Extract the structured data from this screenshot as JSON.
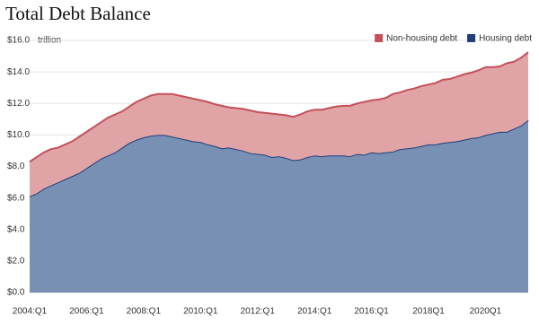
{
  "chart_data": {
    "type": "stacked_area",
    "title": "Total Debt Balance",
    "y_unit_label": "trillion",
    "categories": [
      "2004:Q1",
      null,
      null,
      null,
      null,
      null,
      null,
      null,
      "2006:Q1",
      null,
      null,
      null,
      null,
      null,
      null,
      null,
      "2008:Q1",
      null,
      null,
      null,
      null,
      null,
      null,
      null,
      "2010:Q1",
      null,
      null,
      null,
      null,
      null,
      null,
      null,
      "2012:Q1",
      null,
      null,
      null,
      null,
      null,
      null,
      null,
      "2014:Q1",
      null,
      null,
      null,
      null,
      null,
      null,
      null,
      "2016:Q1",
      null,
      null,
      null,
      null,
      null,
      null,
      null,
      "2018Q1",
      null,
      null,
      null,
      null,
      null,
      null,
      null,
      "2020Q1",
      null,
      null,
      null,
      null,
      null,
      null
    ],
    "series": [
      {
        "name": "Housing debt",
        "color": "#1f3f7a",
        "fill": "#7890b4",
        "values": [
          6.1,
          6.3,
          6.6,
          6.8,
          7.0,
          7.2,
          7.4,
          7.6,
          7.9,
          8.2,
          8.5,
          8.7,
          8.9,
          9.2,
          9.5,
          9.7,
          9.85,
          9.95,
          10.0,
          10.0,
          9.9,
          9.8,
          9.7,
          9.6,
          9.55,
          9.4,
          9.3,
          9.15,
          9.2,
          9.1,
          9.0,
          8.85,
          8.8,
          8.75,
          8.6,
          8.65,
          8.55,
          8.4,
          8.45,
          8.6,
          8.7,
          8.65,
          8.7,
          8.7,
          8.7,
          8.65,
          8.8,
          8.75,
          8.9,
          8.85,
          8.9,
          8.95,
          9.1,
          9.15,
          9.2,
          9.3,
          9.4,
          9.4,
          9.5,
          9.55,
          9.6,
          9.7,
          9.8,
          9.85,
          10.0,
          10.1,
          10.2,
          10.2,
          10.4,
          10.6,
          10.95
        ]
      },
      {
        "name": "Non-housing debt",
        "color": "#c4505a",
        "fill": "#e0a3a6",
        "values": [
          2.2,
          2.3,
          2.3,
          2.3,
          2.2,
          2.2,
          2.2,
          2.3,
          2.3,
          2.3,
          2.3,
          2.4,
          2.4,
          2.3,
          2.3,
          2.4,
          2.45,
          2.55,
          2.6,
          2.6,
          2.7,
          2.7,
          2.7,
          2.7,
          2.65,
          2.7,
          2.65,
          2.7,
          2.55,
          2.6,
          2.65,
          2.7,
          2.65,
          2.65,
          2.75,
          2.65,
          2.7,
          2.75,
          2.85,
          2.9,
          2.9,
          2.95,
          3.0,
          3.1,
          3.15,
          3.2,
          3.2,
          3.35,
          3.3,
          3.4,
          3.45,
          3.65,
          3.6,
          3.7,
          3.75,
          3.8,
          3.8,
          3.9,
          4.0,
          4.0,
          4.1,
          4.15,
          4.15,
          4.25,
          4.3,
          4.2,
          4.15,
          4.35,
          4.25,
          4.3,
          4.3
        ]
      }
    ],
    "ylim": [
      0,
      16
    ],
    "yticks": [
      {
        "value": 0,
        "label": "$0.0"
      },
      {
        "value": 2,
        "label": "$2.0"
      },
      {
        "value": 4,
        "label": "$4.0"
      },
      {
        "value": 6,
        "label": "$6.0"
      },
      {
        "value": 8,
        "label": "$8.0"
      },
      {
        "value": 10,
        "label": "$10.0"
      },
      {
        "value": 12,
        "label": "$12.0"
      },
      {
        "value": 14,
        "label": "$14.0"
      },
      {
        "value": 16,
        "label": "$16.0"
      }
    ],
    "grid": true,
    "legend": "top-right"
  }
}
